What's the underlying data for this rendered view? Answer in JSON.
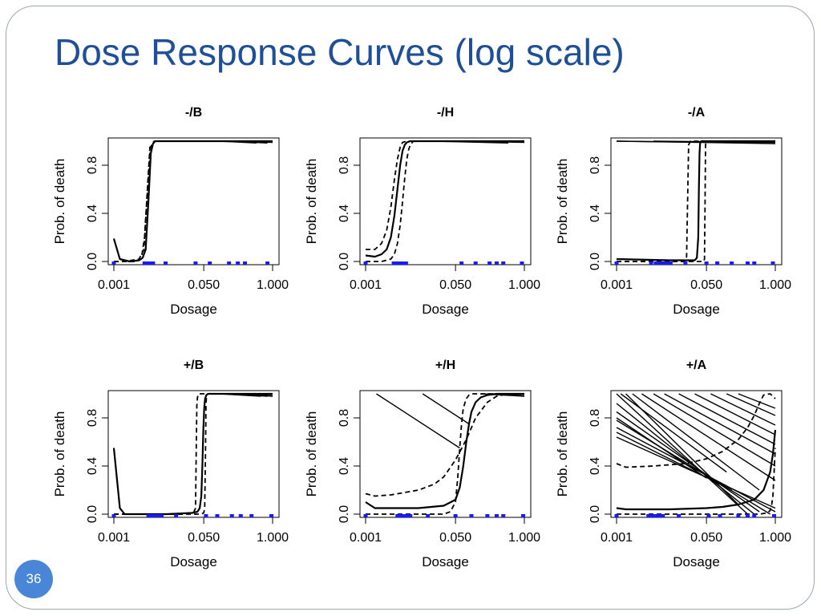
{
  "slide": {
    "title": "Dose Response Curves (log scale)",
    "page_number": "36",
    "colors": {
      "title": "#1f4f96",
      "page_badge": "#4a86d8",
      "marker": "#1a1aff",
      "curve": "#000000"
    }
  },
  "chart_data": [
    {
      "type": "line",
      "title": "-/B",
      "xlabel": "Dosage",
      "ylabel": "Prob. of death",
      "x_scale": "log",
      "xlim": [
        0.001,
        1.0
      ],
      "ylim": [
        0,
        1
      ],
      "x_ticks": [
        0.001,
        0.05,
        1.0
      ],
      "x_tick_labels": [
        "0.001",
        "0.050",
        "1.000"
      ],
      "y_ticks": [
        0,
        0.4,
        0.8
      ],
      "y_tick_labels": [
        "0.0",
        "0.4",
        "0.8"
      ],
      "series": [
        {
          "style": "solid",
          "x": [
            0.001,
            0.0013,
            0.002,
            0.003,
            0.0035,
            0.004,
            0.0045,
            0.005,
            0.0055,
            0.006,
            0.01,
            0.1,
            1.0
          ],
          "y": [
            0.19,
            0.02,
            0.0,
            0.01,
            0.03,
            0.1,
            0.5,
            0.9,
            0.98,
            1.0,
            1.0,
            1.0,
            1.0
          ]
        },
        {
          "style": "dashed",
          "x": [
            0.001,
            0.0016,
            0.003,
            0.0037,
            0.0042,
            0.0048,
            0.0052,
            0.0058,
            0.01,
            1.0
          ],
          "y": [
            0.0,
            0.0,
            0.02,
            0.1,
            0.5,
            0.9,
            0.98,
            1.0,
            1.0,
            1.0
          ]
        },
        {
          "style": "dashed",
          "x": [
            0.001,
            0.0025,
            0.0033,
            0.0038,
            0.0043,
            0.0048,
            0.006,
            0.01,
            1.0
          ],
          "y": [
            0.0,
            0.0,
            0.02,
            0.2,
            0.6,
            0.95,
            1.0,
            1.0,
            1.0
          ]
        }
      ],
      "fan_lines": [
        {
          "x": [
            0.1,
            0.5
          ],
          "y": [
            1.0,
            0.985
          ]
        },
        {
          "x": [
            0.15,
            0.8
          ],
          "y": [
            1.0,
            0.985
          ]
        },
        {
          "x": [
            0.2,
            1.0
          ],
          "y": [
            1.0,
            0.99
          ]
        }
      ],
      "rug": [
        0.001,
        0.0038,
        0.0043,
        0.0048,
        0.0055,
        0.0095,
        0.035,
        0.065,
        0.15,
        0.22,
        0.3,
        0.8
      ]
    },
    {
      "type": "line",
      "title": "-/H",
      "xlabel": "Dosage",
      "ylabel": "Prob. of death",
      "x_scale": "log",
      "xlim": [
        0.001,
        1.0
      ],
      "ylim": [
        0,
        1
      ],
      "x_ticks": [
        0.001,
        0.05,
        1.0
      ],
      "x_tick_labels": [
        "0.001",
        "0.050",
        "1.000"
      ],
      "y_ticks": [
        0,
        0.4,
        0.8
      ],
      "y_tick_labels": [
        "0.0",
        "0.4",
        "0.8"
      ],
      "series": [
        {
          "style": "solid",
          "x": [
            0.001,
            0.0015,
            0.002,
            0.0025,
            0.003,
            0.0035,
            0.004,
            0.0045,
            0.005,
            0.0055,
            0.006,
            0.007,
            0.01,
            0.1,
            1.0
          ],
          "y": [
            0.05,
            0.04,
            0.06,
            0.1,
            0.2,
            0.38,
            0.6,
            0.8,
            0.92,
            0.97,
            0.99,
            1.0,
            1.0,
            1.0,
            1.0
          ]
        },
        {
          "style": "dashed",
          "x": [
            0.001,
            0.0015,
            0.002,
            0.0025,
            0.003,
            0.0035,
            0.004,
            0.0045,
            0.005,
            0.006,
            0.007,
            0.01,
            1.0
          ],
          "y": [
            0.1,
            0.1,
            0.15,
            0.26,
            0.45,
            0.68,
            0.85,
            0.95,
            0.99,
            1.0,
            1.0,
            1.0,
            1.0
          ]
        },
        {
          "style": "dashed",
          "x": [
            0.001,
            0.002,
            0.003,
            0.0035,
            0.004,
            0.0045,
            0.005,
            0.0055,
            0.006,
            0.0065,
            0.007,
            0.008,
            0.01,
            1.0
          ],
          "y": [
            0.0,
            0.0,
            0.02,
            0.06,
            0.15,
            0.3,
            0.5,
            0.7,
            0.85,
            0.93,
            0.97,
            1.0,
            1.0,
            1.0
          ]
        }
      ],
      "fan_lines": [
        {
          "x": [
            0.02,
            0.5
          ],
          "y": [
            1.0,
            0.985
          ]
        },
        {
          "x": [
            0.05,
            1.0
          ],
          "y": [
            1.0,
            0.99
          ]
        }
      ],
      "rug": [
        0.001,
        0.0034,
        0.0036,
        0.0039,
        0.0042,
        0.0046,
        0.0052,
        0.0058,
        0.065,
        0.12,
        0.22,
        0.3,
        0.4,
        0.9
      ]
    },
    {
      "type": "line",
      "title": "-/A",
      "xlabel": "Dosage",
      "ylabel": "Prob. of death",
      "x_scale": "log",
      "xlim": [
        0.001,
        1.0
      ],
      "ylim": [
        0,
        1
      ],
      "x_ticks": [
        0.001,
        0.05,
        1.0
      ],
      "x_tick_labels": [
        "0.001",
        "0.050",
        "1.000"
      ],
      "y_ticks": [
        0,
        0.4,
        0.8
      ],
      "y_tick_labels": [
        "0.0",
        "0.4",
        "0.8"
      ],
      "series": [
        {
          "style": "solid",
          "x": [
            0.001,
            0.01,
            0.025,
            0.03,
            0.033,
            0.035,
            0.036,
            0.037,
            0.038,
            0.04,
            0.06,
            1.0
          ],
          "y": [
            0.02,
            0.01,
            0.01,
            0.01,
            0.03,
            0.2,
            0.6,
            0.9,
            0.99,
            1.0,
            1.0,
            1.0
          ]
        },
        {
          "style": "dashed",
          "x": [
            0.001,
            0.018,
            0.021,
            0.022,
            0.023,
            0.025,
            0.04,
            1.0
          ],
          "y": [
            0.0,
            0.0,
            0.02,
            0.5,
            0.97,
            1.0,
            1.0,
            1.0
          ]
        },
        {
          "style": "dashed",
          "x": [
            0.001,
            0.044,
            0.046,
            0.047,
            0.048,
            0.05,
            1.0
          ],
          "y": [
            0.0,
            0.0,
            0.02,
            0.5,
            0.97,
            1.0,
            1.0
          ]
        }
      ],
      "fan_lines": [
        {
          "x": [
            0.001,
            1.0
          ],
          "y": [
            1.0,
            0.98
          ]
        },
        {
          "x": [
            0.001,
            0.6
          ],
          "y": [
            1.0,
            0.985
          ]
        },
        {
          "x": [
            0.005,
            1.0
          ],
          "y": [
            1.0,
            0.99
          ]
        }
      ],
      "rug": [
        0.001,
        0.0045,
        0.0055,
        0.0065,
        0.0075,
        0.008,
        0.0095,
        0.0105,
        0.02,
        0.05,
        0.08,
        0.15,
        0.3,
        0.4,
        0.9
      ]
    },
    {
      "type": "line",
      "title": "+/B",
      "xlabel": "Dosage",
      "ylabel": "Prob. of death",
      "x_scale": "log",
      "xlim": [
        0.001,
        1.0
      ],
      "ylim": [
        0,
        1
      ],
      "x_ticks": [
        0.001,
        0.05,
        1.0
      ],
      "x_tick_labels": [
        "0.001",
        "0.050",
        "1.000"
      ],
      "y_ticks": [
        0,
        0.4,
        0.8
      ],
      "y_tick_labels": [
        "0.0",
        "0.4",
        "0.8"
      ],
      "series": [
        {
          "style": "solid",
          "x": [
            0.001,
            0.0013,
            0.0016,
            0.003,
            0.01,
            0.03,
            0.038,
            0.042,
            0.045,
            0.047,
            0.049,
            0.051,
            0.053,
            0.056,
            0.06,
            1.0
          ],
          "y": [
            0.55,
            0.05,
            0.0,
            0.0,
            0.0,
            0.01,
            0.02,
            0.05,
            0.15,
            0.4,
            0.7,
            0.88,
            0.96,
            0.99,
            1.0,
            1.0
          ]
        },
        {
          "style": "dashed",
          "x": [
            0.001,
            0.02,
            0.032,
            0.035,
            0.036,
            0.037,
            0.038,
            0.04,
            1.0
          ],
          "y": [
            0.0,
            0.0,
            0.01,
            0.05,
            0.5,
            0.9,
            0.97,
            1.0,
            1.0
          ]
        },
        {
          "style": "dashed",
          "x": [
            0.001,
            0.045,
            0.05,
            0.052,
            0.054,
            0.055,
            0.056,
            0.06,
            1.0
          ],
          "y": [
            0.0,
            0.0,
            0.01,
            0.05,
            0.5,
            0.9,
            0.97,
            1.0,
            1.0
          ]
        }
      ],
      "fan_lines": [
        {
          "x": [
            0.1,
            0.6
          ],
          "y": [
            1.0,
            0.98
          ]
        },
        {
          "x": [
            0.15,
            0.8
          ],
          "y": [
            1.0,
            0.98
          ]
        },
        {
          "x": [
            0.22,
            1.0
          ],
          "y": [
            1.0,
            0.98
          ]
        },
        {
          "x": [
            0.3,
            1.0
          ],
          "y": [
            1.0,
            0.985
          ]
        }
      ],
      "rug": [
        0.001,
        0.0045,
        0.005,
        0.0055,
        0.006,
        0.0065,
        0.007,
        0.008,
        0.015,
        0.055,
        0.09,
        0.17,
        0.25,
        0.4,
        0.95
      ]
    },
    {
      "type": "line",
      "title": "+/H",
      "xlabel": "Dosage",
      "ylabel": "Prob. of death",
      "x_scale": "log",
      "xlim": [
        0.001,
        1.0
      ],
      "ylim": [
        0,
        1
      ],
      "x_ticks": [
        0.001,
        0.05,
        1.0
      ],
      "x_tick_labels": [
        "0.001",
        "0.050",
        "1.000"
      ],
      "y_ticks": [
        0,
        0.4,
        0.8
      ],
      "y_tick_labels": [
        "0.0",
        "0.4",
        "0.8"
      ],
      "series": [
        {
          "style": "solid",
          "x": [
            0.001,
            0.0015,
            0.003,
            0.01,
            0.03,
            0.05,
            0.06,
            0.07,
            0.08,
            0.09,
            0.1,
            0.12,
            0.15,
            0.2,
            0.3,
            1.0
          ],
          "y": [
            0.1,
            0.05,
            0.05,
            0.05,
            0.07,
            0.12,
            0.22,
            0.4,
            0.6,
            0.75,
            0.85,
            0.93,
            0.97,
            0.99,
            1.0,
            1.0
          ]
        },
        {
          "style": "dashed",
          "x": [
            0.001,
            0.0015,
            0.003,
            0.01,
            0.02,
            0.03,
            0.05,
            0.08,
            0.12,
            0.2,
            0.3,
            0.5,
            1.0
          ],
          "y": [
            0.17,
            0.15,
            0.16,
            0.2,
            0.25,
            0.31,
            0.45,
            0.62,
            0.8,
            0.93,
            0.98,
            1.0,
            1.0
          ]
        },
        {
          "style": "dashed",
          "x": [
            0.001,
            0.03,
            0.04,
            0.05,
            0.055,
            0.06,
            0.065,
            0.07,
            0.08,
            0.09,
            0.1,
            0.15,
            1.0
          ],
          "y": [
            0.0,
            0.0,
            0.02,
            0.1,
            0.3,
            0.55,
            0.75,
            0.88,
            0.96,
            0.99,
            1.0,
            1.0,
            1.0
          ]
        }
      ],
      "fan_lines": [
        {
          "x": [
            0.0016,
            0.06
          ],
          "y": [
            1.0,
            0.55
          ]
        },
        {
          "x": [
            0.012,
            0.09
          ],
          "y": [
            1.0,
            0.75
          ]
        },
        {
          "x": [
            0.15,
            1.0
          ],
          "y": [
            1.0,
            0.98
          ]
        },
        {
          "x": [
            0.2,
            1.0
          ],
          "y": [
            1.0,
            0.985
          ]
        }
      ],
      "rug": [
        0.001,
        0.004,
        0.0045,
        0.005,
        0.0055,
        0.006,
        0.007,
        0.015,
        0.05,
        0.1,
        0.2,
        0.3,
        0.4,
        0.95
      ]
    },
    {
      "type": "line",
      "title": "+/A",
      "xlabel": "Dosage",
      "ylabel": "Prob. of death",
      "x_scale": "log",
      "xlim": [
        0.001,
        1.0
      ],
      "ylim": [
        0,
        1
      ],
      "x_ticks": [
        0.001,
        0.05,
        1.0
      ],
      "x_tick_labels": [
        "0.001",
        "0.050",
        "1.000"
      ],
      "y_ticks": [
        0,
        0.4,
        0.8
      ],
      "y_tick_labels": [
        "0.0",
        "0.4",
        "0.8"
      ],
      "series": [
        {
          "style": "solid",
          "x": [
            0.001,
            0.0015,
            0.003,
            0.01,
            0.05,
            0.1,
            0.2,
            0.4,
            0.6,
            0.8,
            0.9,
            0.95,
            1.0
          ],
          "y": [
            0.05,
            0.04,
            0.04,
            0.04,
            0.05,
            0.06,
            0.08,
            0.12,
            0.2,
            0.35,
            0.5,
            0.6,
            0.7
          ]
        },
        {
          "style": "dashed",
          "x": [
            0.001,
            0.0015,
            0.005,
            0.02,
            0.05,
            0.1,
            0.2,
            0.3,
            0.4,
            0.5,
            0.6,
            0.8,
            1.0
          ],
          "y": [
            0.42,
            0.39,
            0.4,
            0.42,
            0.46,
            0.52,
            0.62,
            0.72,
            0.82,
            0.92,
            0.99,
            1.0,
            0.96
          ]
        },
        {
          "style": "dashed",
          "x": [
            0.001,
            0.5,
            0.7,
            0.8,
            0.85,
            0.9,
            0.95,
            1.0
          ],
          "y": [
            0.0,
            0.0,
            0.01,
            0.03,
            0.07,
            0.15,
            0.35,
            0.55
          ]
        }
      ],
      "fan_lines": [
        {
          "x": [
            0.001,
            0.3
          ],
          "y": [
            1.0,
            0.0
          ]
        },
        {
          "x": [
            0.001,
            0.4
          ],
          "y": [
            0.92,
            0.0
          ]
        },
        {
          "x": [
            0.001,
            0.5
          ],
          "y": [
            0.85,
            0.02
          ]
        },
        {
          "x": [
            0.001,
            0.8
          ],
          "y": [
            0.78,
            0.0
          ]
        },
        {
          "x": [
            0.001,
            1.0
          ],
          "y": [
            0.72,
            0.02
          ]
        },
        {
          "x": [
            0.001,
            1.0
          ],
          "y": [
            0.64,
            0.05
          ]
        },
        {
          "x": [
            0.0015,
            0.2
          ],
          "y": [
            1.0,
            0.08
          ]
        },
        {
          "x": [
            0.002,
            0.5
          ],
          "y": [
            1.0,
            0.2
          ]
        },
        {
          "x": [
            0.003,
            1.0
          ],
          "y": [
            1.0,
            0.28
          ]
        },
        {
          "x": [
            0.005,
            1.0
          ],
          "y": [
            1.0,
            0.4
          ]
        },
        {
          "x": [
            0.008,
            1.0
          ],
          "y": [
            1.0,
            0.5
          ]
        },
        {
          "x": [
            0.015,
            1.0
          ],
          "y": [
            1.0,
            0.58
          ]
        },
        {
          "x": [
            0.03,
            1.0
          ],
          "y": [
            1.0,
            0.66
          ]
        },
        {
          "x": [
            0.06,
            1.0
          ],
          "y": [
            1.0,
            0.74
          ]
        },
        {
          "x": [
            0.12,
            1.0
          ],
          "y": [
            1.0,
            0.82
          ]
        },
        {
          "x": [
            0.2,
            1.0
          ],
          "y": [
            1.0,
            0.88
          ]
        },
        {
          "x": [
            0.001,
            0.15
          ],
          "y": [
            0.68,
            0.2
          ]
        },
        {
          "x": [
            0.001,
            0.05
          ],
          "y": [
            0.8,
            0.3
          ]
        },
        {
          "x": [
            0.0012,
            0.12
          ],
          "y": [
            1.0,
            0.35
          ]
        }
      ],
      "rug": [
        0.001,
        0.004,
        0.0045,
        0.005,
        0.0055,
        0.006,
        0.007,
        0.0075,
        0.015,
        0.055,
        0.09,
        0.2,
        0.3,
        0.4,
        0.95
      ]
    }
  ]
}
